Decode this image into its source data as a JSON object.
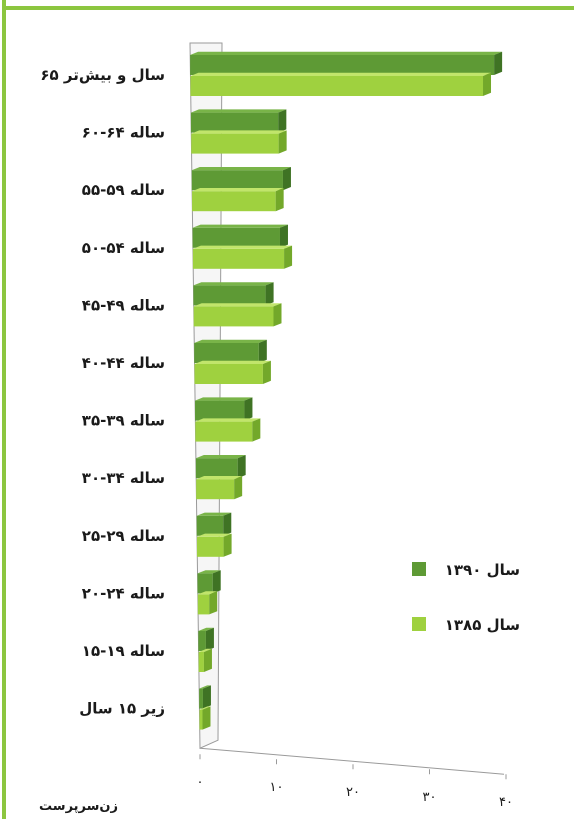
{
  "colors": {
    "frame": "#8cc63f",
    "series_1390_front": "#5e9a35",
    "series_1390_top": "#79b448",
    "series_1390_side": "#3f7324",
    "series_1385_front": "#9fd13f",
    "series_1385_top": "#c1e56b",
    "series_1385_side": "#73a82a",
    "axis": "#9a9a9a"
  },
  "chart_data": {
    "type": "bar",
    "orientation": "horizontal",
    "style": "3d",
    "categories": [
      "۶۵ سال و بیش‌تر",
      "۶۰-۶۴ ساله",
      "۵۵-۵۹ ساله",
      "۵۰-۵۴ ساله",
      "۴۵-۴۹ ساله",
      "۴۰-۴۴ ساله",
      "۳۵-۳۹ ساله",
      "۳۰-۳۴ ساله",
      "۲۵-۲۹ ساله",
      "۲۰-۲۴ ساله",
      "۱۵-۱۹ ساله",
      "زیر ۱۵ سال"
    ],
    "series": [
      {
        "name": "سال ۱۳۹۰",
        "values": [
          40,
          11.5,
          12,
          11.5,
          9.5,
          8.5,
          6.5,
          5.5,
          3.5,
          2,
          1,
          0.5
        ]
      },
      {
        "name": "سال ۱۳۸۵",
        "values": [
          38.5,
          11.5,
          11,
          12,
          10.5,
          9,
          7.5,
          5,
          3.5,
          1.5,
          0.7,
          0.4
        ]
      }
    ],
    "xlabel": "زن‌سرپرست",
    "ylabel": "",
    "xlim": [
      0,
      40
    ],
    "xticks": [
      "۰",
      "۱۰",
      "۲۰",
      "۳۰",
      "۴۰"
    ],
    "legend_position": "right"
  }
}
